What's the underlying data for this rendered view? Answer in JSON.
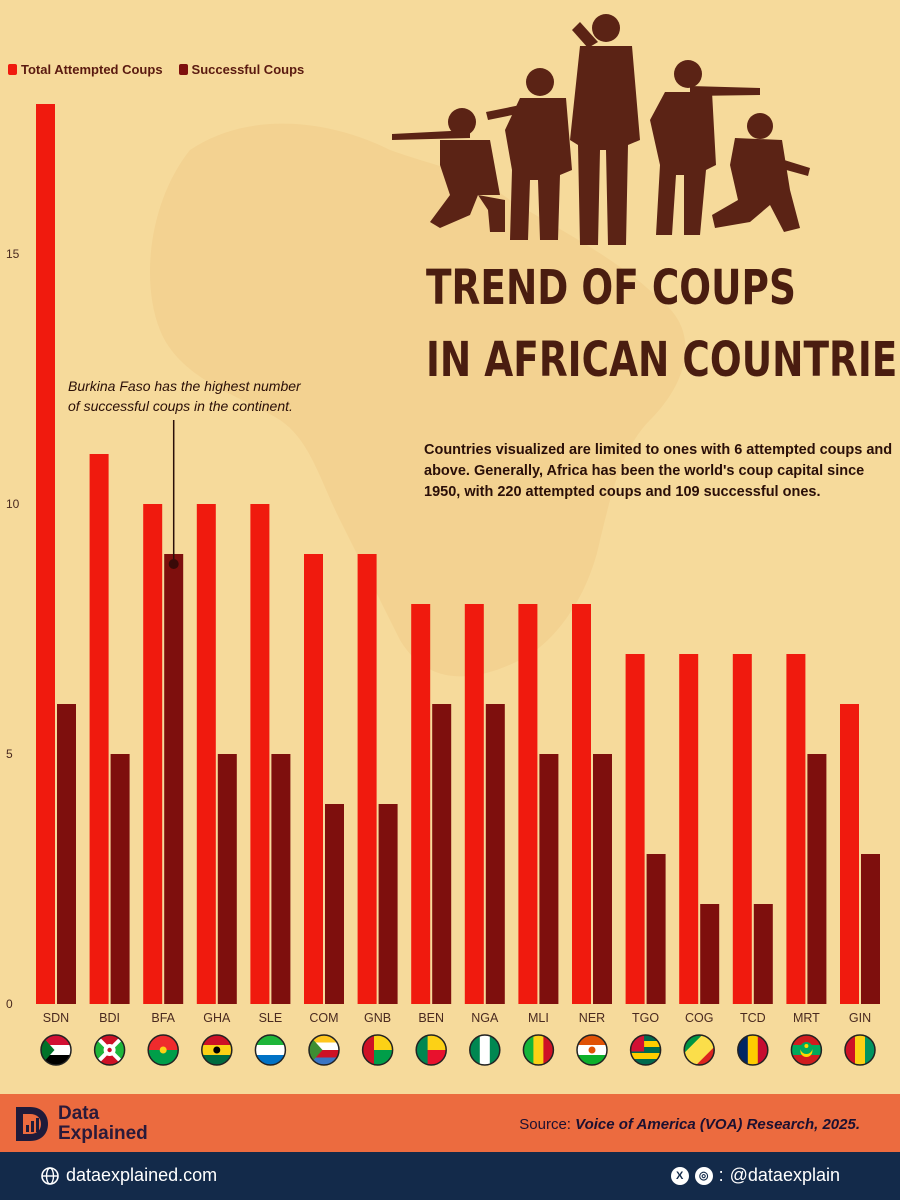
{
  "title": [
    "Trend of Coups",
    "in African Countries"
  ],
  "description": "Countries visualized are limited to ones with 6 attempted coups and above. Generally, Africa has been the world's coup capital since 1950, with 220 attempted coups and 109 successful ones.",
  "annotation": [
    "Burkina Faso has the highest number",
    "of successful coups in the continent."
  ],
  "legend": [
    "Total Attempted Coups",
    "Successful Coups"
  ],
  "colors": {
    "attempted": "#f01a0e",
    "successful": "#7e0f0d",
    "background": "#f6da9b",
    "silhouette": "#5b2315",
    "axis_text": "#4a2a20"
  },
  "chart_data": {
    "type": "bar",
    "categories": [
      "SDN",
      "BDI",
      "BFA",
      "GHA",
      "SLE",
      "COM",
      "GNB",
      "BEN",
      "NGA",
      "MLI",
      "NER",
      "TGO",
      "COG",
      "TCD",
      "MRT",
      "GIN"
    ],
    "series": [
      {
        "name": "Total Attempted Coups",
        "values": [
          18,
          11,
          10,
          10,
          10,
          9,
          9,
          8,
          8,
          8,
          8,
          7,
          7,
          7,
          7,
          6
        ]
      },
      {
        "name": "Successful Coups",
        "values": [
          6,
          5,
          9,
          5,
          5,
          4,
          4,
          6,
          6,
          5,
          5,
          3,
          2,
          2,
          5,
          3
        ]
      }
    ],
    "y_ticks": [
      0,
      5,
      10,
      15
    ],
    "ylim": [
      0,
      18
    ],
    "grid": false,
    "legend_position": "top-left",
    "annotation_target": "BFA"
  },
  "flags": [
    {
      "code": "SDN",
      "colors": [
        "#d21034",
        "#ffffff",
        "#000000"
      ],
      "triangle": "#007229"
    },
    {
      "code": "BDI",
      "colors": [
        "#ce1126",
        "#1eb53a"
      ],
      "type": "saltire"
    },
    {
      "code": "BFA",
      "colors": [
        "#ef2b2d",
        "#009e49"
      ],
      "star": "#fcd116"
    },
    {
      "code": "GHA",
      "colors": [
        "#ce1126",
        "#fcd116",
        "#006b3f"
      ],
      "star": "#000000"
    },
    {
      "code": "SLE",
      "colors": [
        "#1eb53a",
        "#ffffff",
        "#0072c6"
      ]
    },
    {
      "code": "COM",
      "colors": [
        "#ffc61e",
        "#ffffff",
        "#ce1126",
        "#3a75c4"
      ],
      "triangle": "#3d8e33"
    },
    {
      "code": "GNB",
      "colors": [
        "#fcd116",
        "#009e49"
      ],
      "vertical": "#ce1126"
    },
    {
      "code": "BEN",
      "colors": [
        "#fcd116",
        "#e8112d"
      ],
      "vertical": "#008751"
    },
    {
      "code": "NGA",
      "colors": [
        "#008751",
        "#ffffff",
        "#008751"
      ],
      "type": "vertical"
    },
    {
      "code": "MLI",
      "colors": [
        "#14b53a",
        "#fcd116",
        "#ce1126"
      ],
      "type": "vertical"
    },
    {
      "code": "NER",
      "colors": [
        "#e05206",
        "#ffffff",
        "#0db02b"
      ],
      "disc": "#e05206"
    },
    {
      "code": "TGO",
      "colors": [
        "#006a4e",
        "#ffce00",
        "#006a4e",
        "#ffce00",
        "#006a4e"
      ],
      "canton": "#d21034"
    },
    {
      "code": "COG",
      "colors": [
        "#009543",
        "#fbde4a",
        "#dc241f"
      ],
      "type": "diagonal"
    },
    {
      "code": "TCD",
      "colors": [
        "#002664",
        "#fecb00",
        "#c60c30"
      ],
      "type": "vertical"
    },
    {
      "code": "MRT",
      "colors": [
        "#d01c1f",
        "#00a95c",
        "#d01c1f"
      ],
      "crescent": "#ffd700"
    },
    {
      "code": "GIN",
      "colors": [
        "#ce1126",
        "#fcd116",
        "#009460"
      ],
      "type": "vertical"
    }
  ],
  "brand": {
    "line1": "Data",
    "line2": "Explained"
  },
  "source": {
    "label": "Source: ",
    "value": "Voice of America (VOA) Research, 2025."
  },
  "website": "dataexplained.com",
  "social_handle": "@dataexplain"
}
